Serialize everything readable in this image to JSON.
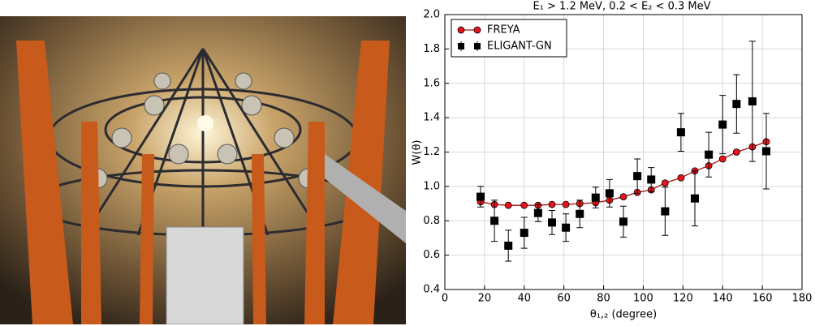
{
  "chart_data": {
    "type": "line",
    "title": "E₁ > 1.2 MeV, 0.2 < E₂ < 0.3 MeV",
    "xlabel": "θ₁,₂ (degree)",
    "ylabel": "W(θ)",
    "x": [
      18,
      25,
      32,
      40,
      47,
      54,
      61,
      68,
      76,
      83,
      90,
      97,
      104,
      111,
      119,
      126,
      133,
      140,
      147,
      155,
      162
    ],
    "series": [
      {
        "name": "FREYA",
        "color": "#e8141c",
        "line_color": "#a01010",
        "marker": "circle",
        "values": [
          0.91,
          0.895,
          0.89,
          0.89,
          0.89,
          0.895,
          0.895,
          0.9,
          0.905,
          0.92,
          0.94,
          0.965,
          0.98,
          1.02,
          1.05,
          1.09,
          1.12,
          1.16,
          1.2,
          1.23,
          1.26
        ]
      },
      {
        "name": "ELIGANT-GN",
        "color": "#000000",
        "marker": "square",
        "values": [
          0.94,
          0.8,
          0.655,
          0.73,
          0.845,
          0.79,
          0.76,
          0.84,
          0.935,
          0.96,
          0.795,
          1.06,
          1.04,
          0.855,
          1.315,
          0.93,
          1.185,
          1.36,
          1.48,
          1.495,
          1.205
        ],
        "errors": [
          0.06,
          0.12,
          0.09,
          0.09,
          0.05,
          0.07,
          0.08,
          0.08,
          0.06,
          0.08,
          0.09,
          0.1,
          0.07,
          0.14,
          0.11,
          0.16,
          0.13,
          0.17,
          0.17,
          0.35,
          0.22
        ]
      }
    ],
    "xlim": [
      0,
      180
    ],
    "xticks": [
      0,
      20,
      40,
      60,
      80,
      100,
      120,
      140,
      160,
      180
    ],
    "ylim": [
      0.4,
      2.0
    ],
    "yticks": [
      0.4,
      0.6,
      0.8,
      {
        "value": 1,
        "label": "1.0"
      },
      1.2,
      1.4,
      1.6,
      1.8,
      {
        "value": 2,
        "label": "2.0"
      }
    ],
    "grid": true,
    "legend": "upper left"
  }
}
